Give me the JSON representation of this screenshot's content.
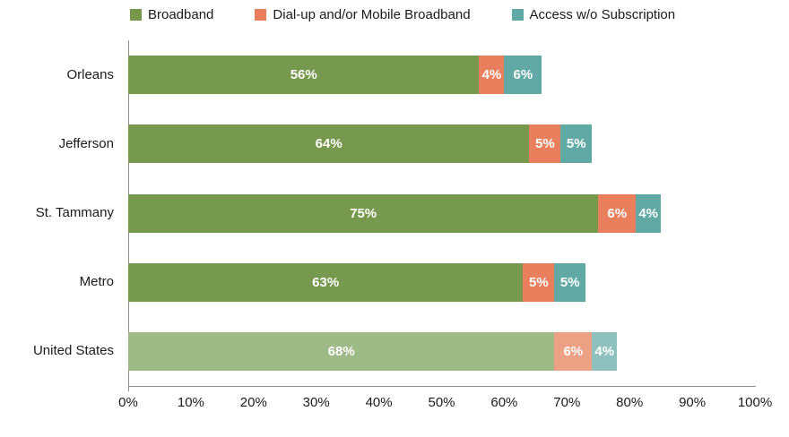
{
  "colors": {
    "axis": "#8c8c8c",
    "text": "#1a1a1a",
    "data_label_text": "#ffffff",
    "background": "#ffffff"
  },
  "chart_data": {
    "type": "bar",
    "orientation": "horizontal",
    "stacked": true,
    "title": "",
    "xlabel": "",
    "ylabel": "",
    "categories": [
      "Orleans",
      "Jefferson",
      "St. Tammany",
      "Metro",
      "United States"
    ],
    "series": [
      {
        "name": "Broadband",
        "color": "#77994e",
        "muted_color": "#9eba87",
        "values": [
          56,
          64,
          75,
          63,
          68
        ]
      },
      {
        "name": "Dial-up and/or Mobile Broadband",
        "color": "#e97f5c",
        "muted_color": "#eca084",
        "values": [
          4,
          5,
          6,
          5,
          6
        ]
      },
      {
        "name": "Access w/o Subscription",
        "color": "#60a9a5",
        "muted_color": "#8ec1bd",
        "values": [
          6,
          5,
          4,
          5,
          4
        ]
      }
    ],
    "muted_categories": [
      "United States"
    ],
    "data_labels": true,
    "data_label_format": "{v}%",
    "xlim": [
      0,
      100
    ],
    "x_ticks": [
      "0%",
      "10%",
      "20%",
      "30%",
      "40%",
      "50%",
      "60%",
      "70%",
      "80%",
      "90%",
      "100%"
    ],
    "grid": false,
    "legend_position": "top"
  }
}
